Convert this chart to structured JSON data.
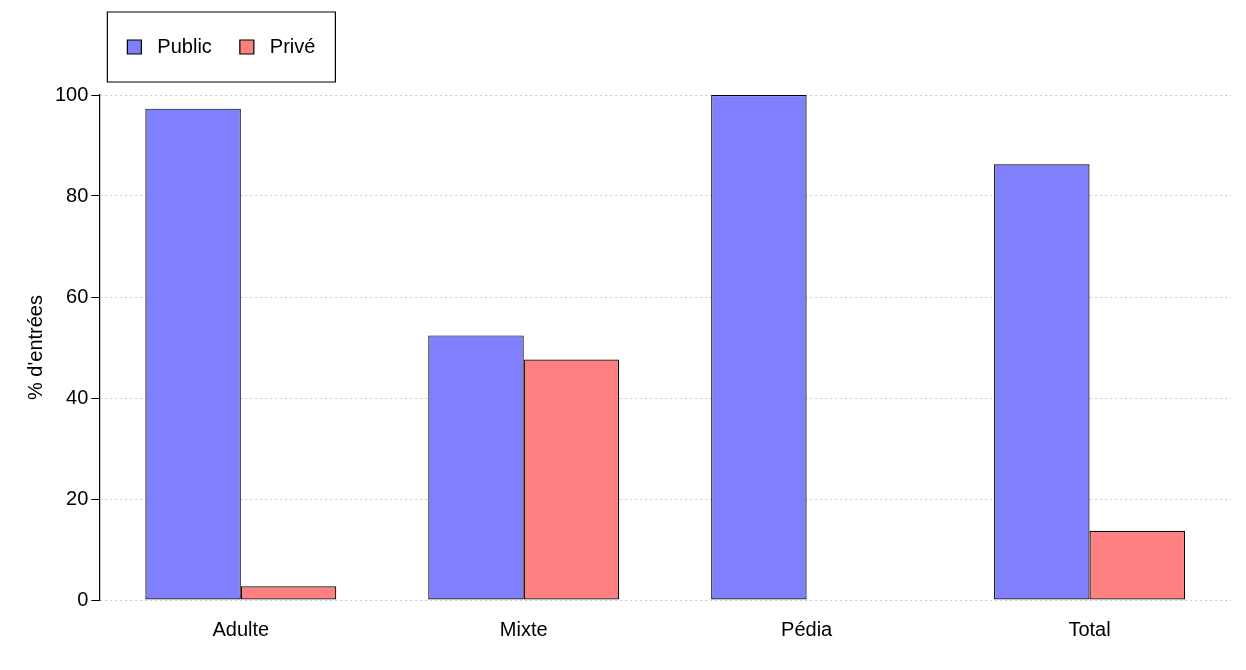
{
  "chart_data": {
    "type": "bar",
    "ylabel": "% d'entrées",
    "categories": [
      "Adulte",
      "Mixte",
      "Pédia",
      "Total"
    ],
    "series": [
      {
        "name": "Public",
        "color": "#8080ff",
        "values": [
          97.3,
          52.4,
          100,
          86.3
        ]
      },
      {
        "name": "Privé",
        "color": "#ff8080",
        "values": [
          2.7,
          47.6,
          0,
          13.7
        ]
      }
    ],
    "ylim": [
      0,
      100
    ],
    "yticks": [
      0,
      20,
      40,
      60,
      80,
      100
    ],
    "grid": "y",
    "legend": "top left"
  }
}
